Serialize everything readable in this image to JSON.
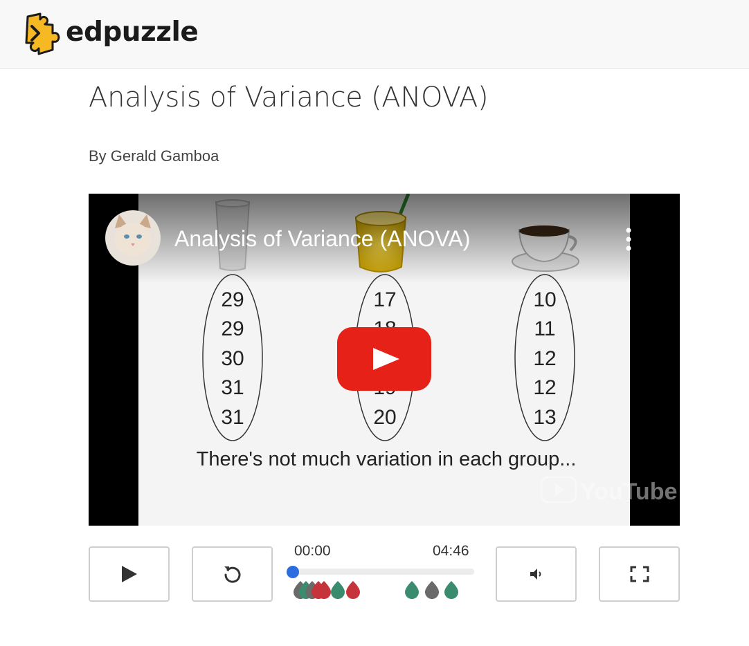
{
  "header": {
    "brand_name": "edpuzzle",
    "logo_icon": "edpuzzle-puzzle-logo-icon"
  },
  "page": {
    "title": "Analysis of Variance (ANOVA)",
    "author": "By Gerald Gamboa"
  },
  "video": {
    "overlay_title": "Analysis of Variance (ANOVA)",
    "channel_avatar": "cat-avatar",
    "menu_icon": "more-vertical-icon",
    "play_icon": "youtube-play-icon",
    "watermark": "YouTube",
    "slide": {
      "groups": [
        {
          "icon": "water-glass-icon",
          "values": [
            "29",
            "29",
            "30",
            "31",
            "31"
          ]
        },
        {
          "icon": "juice-glass-icon",
          "values": [
            "17",
            "18",
            "19",
            "19",
            "20"
          ]
        },
        {
          "icon": "coffee-cup-icon",
          "values": [
            "10",
            "11",
            "12",
            "12",
            "13"
          ]
        }
      ],
      "caption": "There's not much variation in each group..."
    }
  },
  "controls": {
    "play_icon": "play-icon",
    "replay_icon": "replay-icon",
    "volume_icon": "volume-icon",
    "fullscreen_icon": "fullscreen-icon",
    "current_time": "00:00",
    "duration": "04:46",
    "progress": 0,
    "colors": {
      "teal": "#3b8c6e",
      "gray": "#6a6a6a",
      "red": "#c4343a",
      "knob": "#2b6de0",
      "youtube_red": "#e62117"
    }
  }
}
